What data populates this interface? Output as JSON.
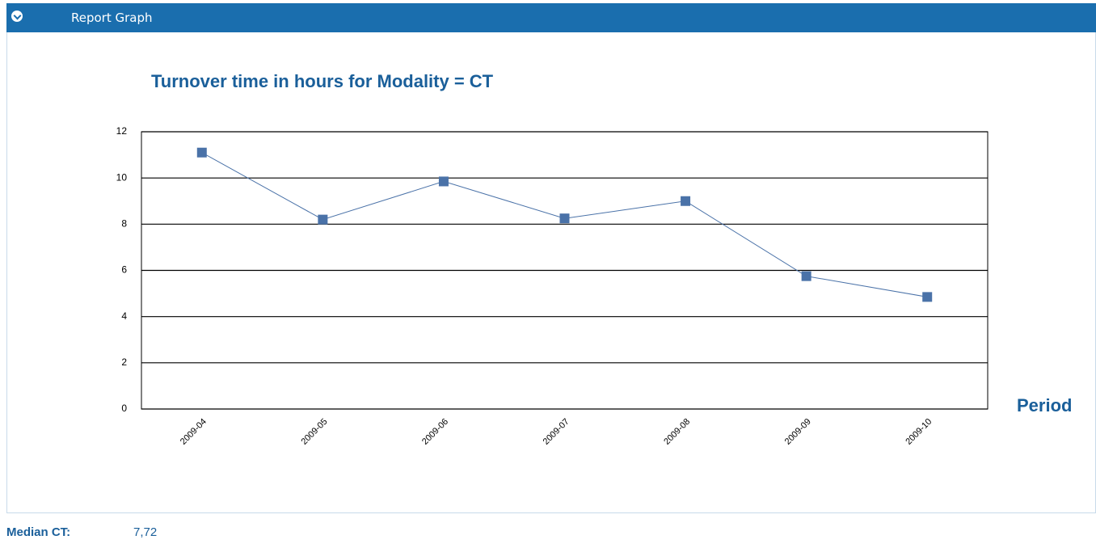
{
  "header": {
    "title": "Report Graph"
  },
  "chart_data": {
    "type": "line",
    "title": "Turnover time in hours  for Modality = CT",
    "x_label": "Period",
    "categories": [
      "2009-04",
      "2009-05",
      "2009-06",
      "2009-07",
      "2009-08",
      "2009-09",
      "2009-10"
    ],
    "values": [
      11.1,
      8.2,
      9.85,
      8.25,
      9.0,
      5.75,
      4.85
    ],
    "color": "#4a72a8",
    "ylim": [
      0,
      12
    ],
    "yticks": [
      0,
      2,
      4,
      6,
      8,
      10,
      12
    ],
    "grid": true
  },
  "footer": {
    "label": "Median CT:",
    "value": "7,72"
  }
}
